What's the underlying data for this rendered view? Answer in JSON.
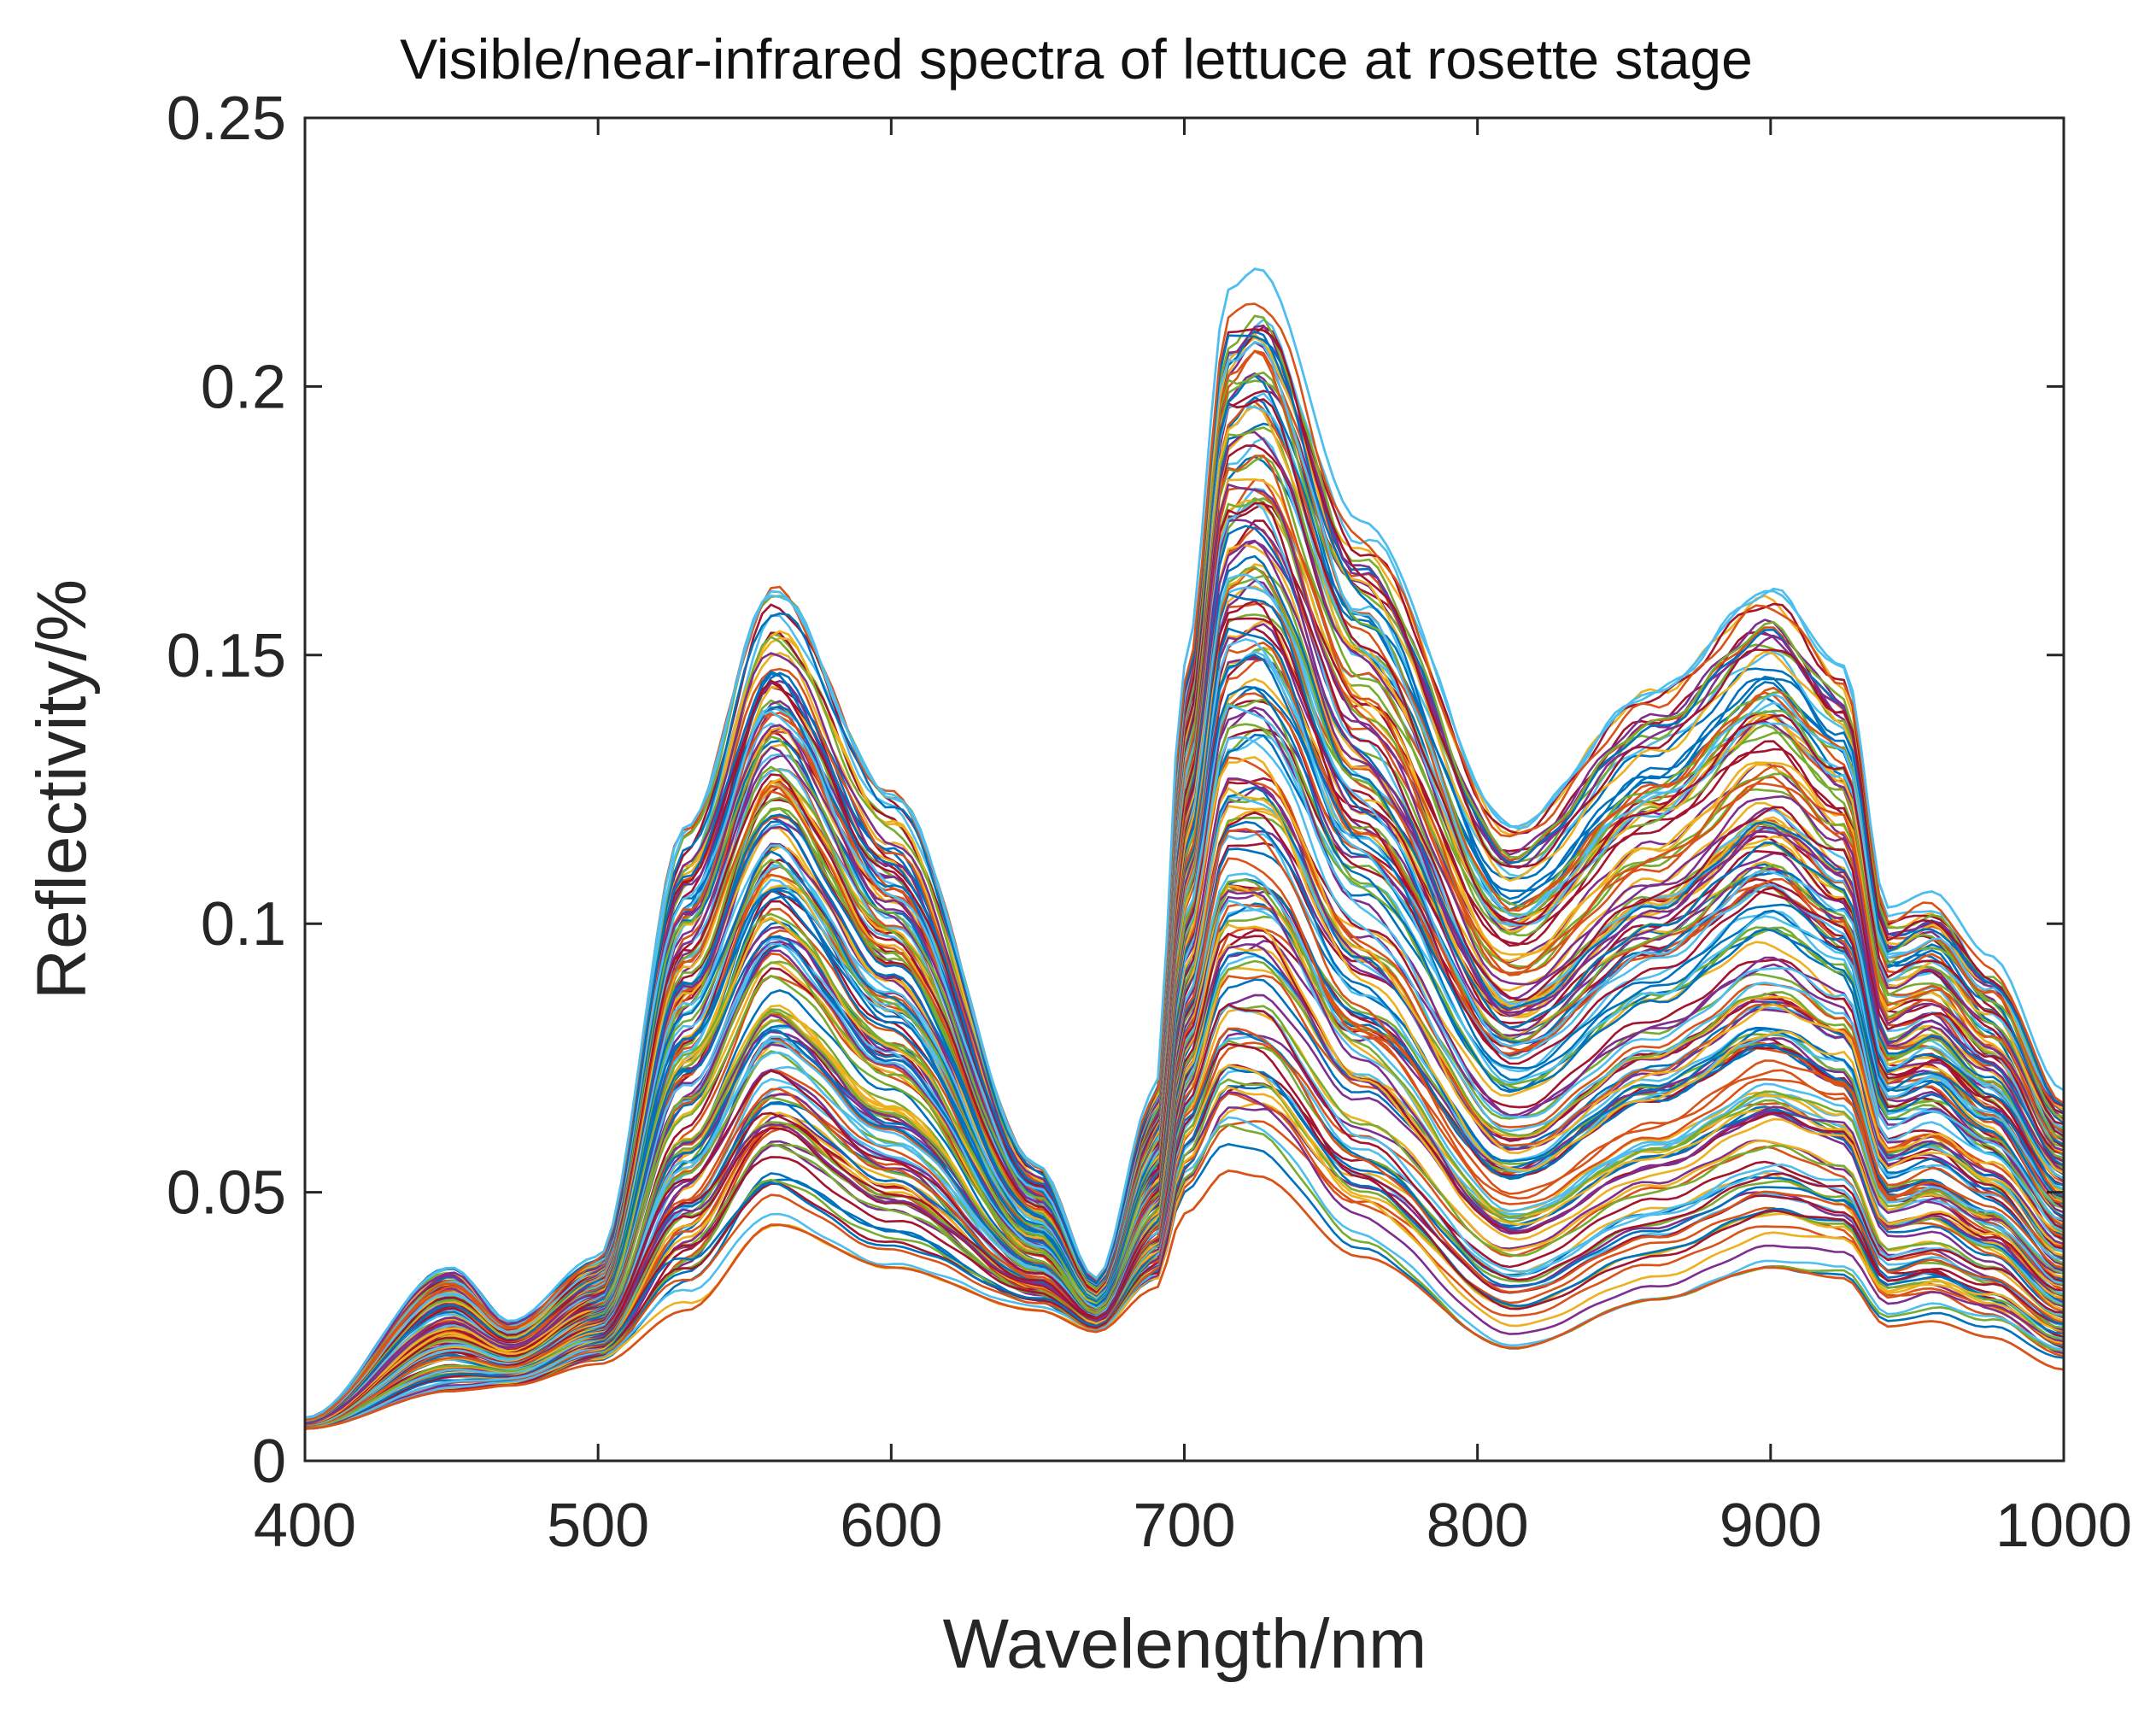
{
  "chart_data": {
    "type": "line",
    "title": "Visible/near-infrared spectra of lettuce at rosette stage",
    "xlabel": "Wavelength/nm",
    "ylabel": "Reflectivity/%",
    "xlim": [
      400,
      1000
    ],
    "ylim": [
      0,
      0.25
    ],
    "x_ticks": [
      400,
      500,
      600,
      700,
      800,
      900,
      1000
    ],
    "x_tick_labels": [
      "400",
      "500",
      "600",
      "700",
      "800",
      "900",
      "1000"
    ],
    "y_ticks": [
      0,
      0.05,
      0.1,
      0.15,
      0.2,
      0.25
    ],
    "y_tick_labels": [
      "0",
      "0.05",
      "0.1",
      "0.15",
      "0.2",
      "0.25"
    ],
    "grid": false,
    "legend": "none",
    "series_count": 170,
    "colors": [
      "#0072BD",
      "#D95319",
      "#EDB120",
      "#7E2F8E",
      "#77AC30",
      "#4DBEEE",
      "#A2142F"
    ],
    "reference_wavelengths": [
      400,
      450,
      470,
      500,
      530,
      560,
      600,
      650,
      670,
      690,
      700,
      715,
      725,
      760,
      812,
      860,
      900,
      925,
      940,
      955,
      975,
      1000
    ],
    "series_low": {
      "values": [
        0.006,
        0.013,
        0.014,
        0.018,
        0.028,
        0.044,
        0.036,
        0.028,
        0.024,
        0.032,
        0.046,
        0.054,
        0.053,
        0.038,
        0.021,
        0.03,
        0.036,
        0.034,
        0.025,
        0.026,
        0.023,
        0.017
      ]
    },
    "series_high": {
      "values": [
        0.008,
        0.036,
        0.026,
        0.038,
        0.118,
        0.162,
        0.124,
        0.055,
        0.034,
        0.069,
        0.148,
        0.218,
        0.222,
        0.175,
        0.118,
        0.143,
        0.162,
        0.148,
        0.103,
        0.106,
        0.094,
        0.069
      ]
    }
  }
}
